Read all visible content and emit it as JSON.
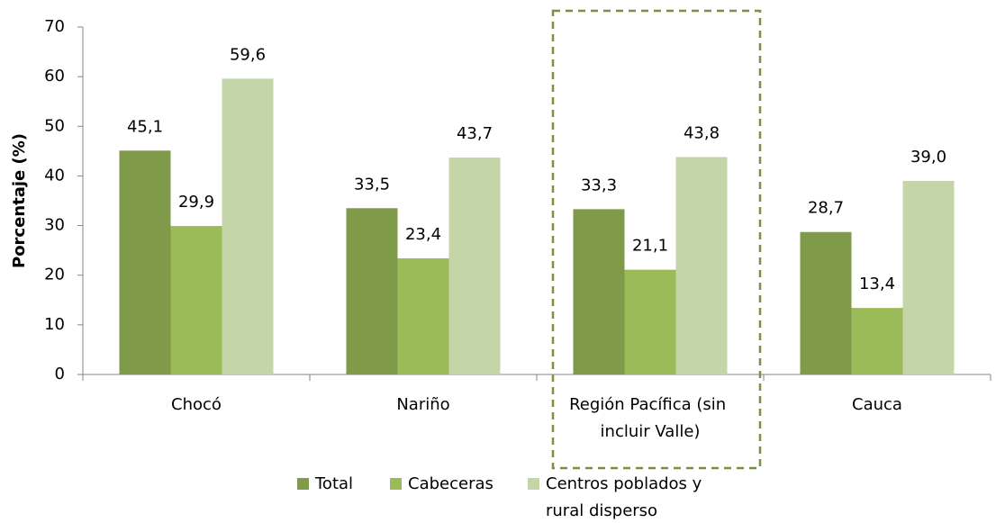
{
  "chart_data": {
    "type": "bar",
    "y_label": "Porcentaje (%)",
    "categories": [
      "Chocó",
      "Nariño",
      "Región Pacífica (sin incluir Valle)",
      "Cauca"
    ],
    "series": [
      {
        "name": "Total",
        "color": "#7f9a48",
        "values": [
          45.1,
          33.5,
          33.3,
          28.7
        ],
        "value_labels": [
          "45,1",
          "33,5",
          "33,3",
          "28,7"
        ]
      },
      {
        "name": "Cabeceras",
        "color": "#9bbb59",
        "values": [
          29.9,
          23.4,
          21.1,
          13.4
        ],
        "value_labels": [
          "29,9",
          "23,4",
          "21,1",
          "13,4"
        ]
      },
      {
        "name": "Centros poblados y rural disperso",
        "color": "#c4d6a8",
        "values": [
          59.6,
          43.7,
          43.8,
          39.0
        ],
        "value_labels": [
          "59,6",
          "43,7",
          "43,8",
          "39,0"
        ]
      }
    ],
    "ylim": [
      0,
      70
    ],
    "yticks": [
      0,
      10,
      20,
      30,
      40,
      50,
      60,
      70
    ],
    "legend": "bottom"
  }
}
